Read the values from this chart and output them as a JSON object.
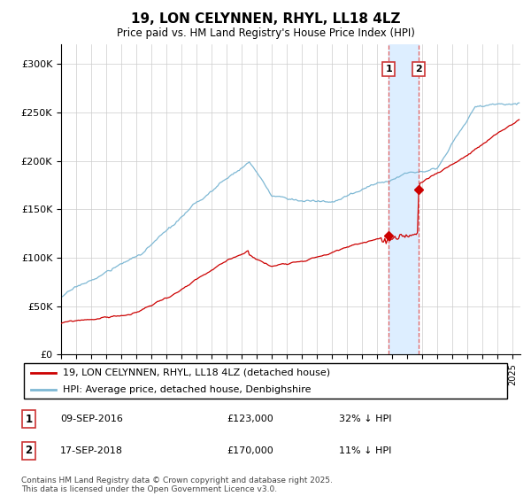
{
  "title": "19, LON CELYNNEN, RHYL, LL18 4LZ",
  "subtitle": "Price paid vs. HM Land Registry's House Price Index (HPI)",
  "legend_line1": "19, LON CELYNNEN, RHYL, LL18 4LZ (detached house)",
  "legend_line2": "HPI: Average price, detached house, Denbighshire",
  "transaction1_date": "09-SEP-2016",
  "transaction1_price": 123000,
  "transaction1_pct": "32% ↓ HPI",
  "transaction2_date": "17-SEP-2018",
  "transaction2_price": 170000,
  "transaction2_pct": "11% ↓ HPI",
  "footer": "Contains HM Land Registry data © Crown copyright and database right 2025.\nThis data is licensed under the Open Government Licence v3.0.",
  "hpi_color": "#7eb8d4",
  "price_color": "#cc0000",
  "vline_color": "#e06060",
  "highlight_color": "#ddeeff",
  "ylim_min": 0,
  "ylim_max": 320000,
  "start_year": 1995,
  "end_year": 2025,
  "t1_year_float": 2016.75,
  "t2_year_float": 2018.75,
  "t1_price": 123000,
  "t2_price": 170000
}
